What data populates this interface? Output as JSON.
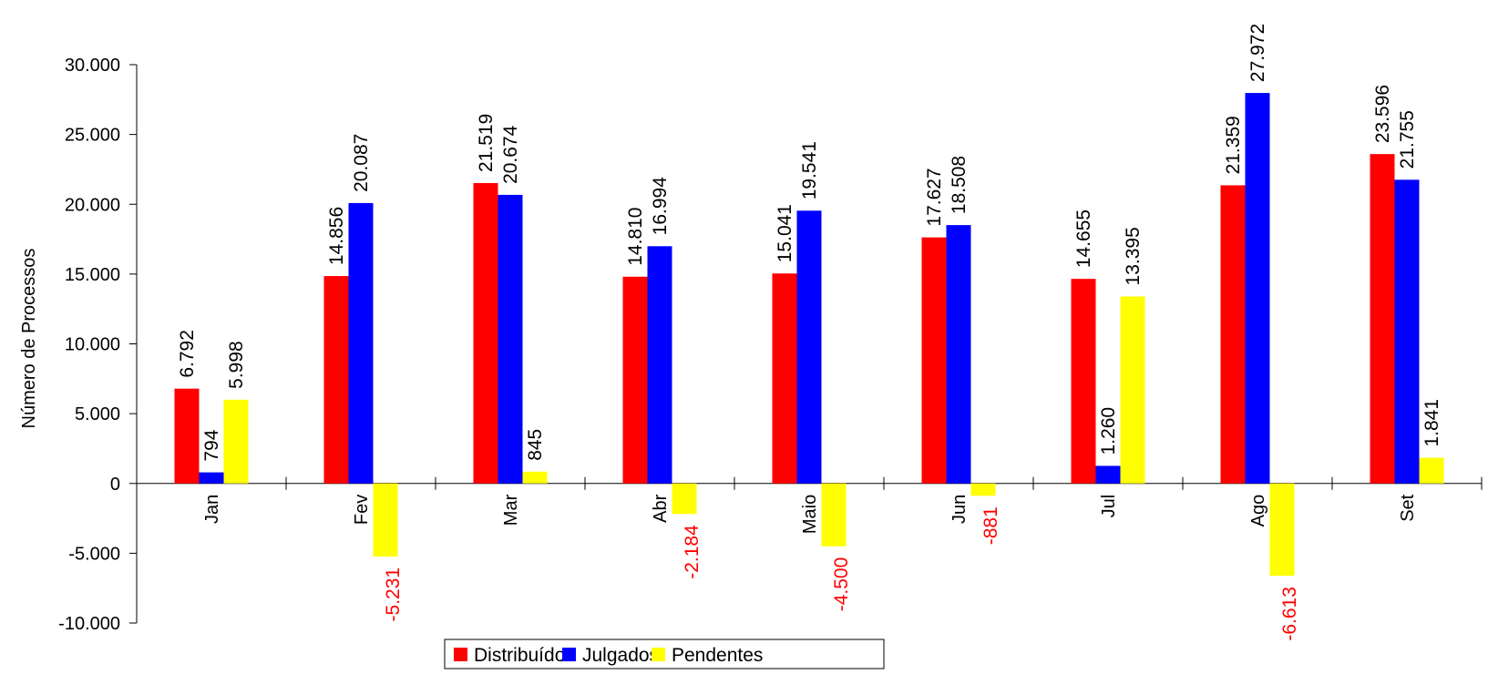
{
  "chart_data": {
    "type": "bar",
    "title": "",
    "xlabel": "",
    "ylabel": "Número de Processos",
    "ylim": [
      -10000,
      30000
    ],
    "yticks": [
      -10000,
      -5000,
      0,
      5000,
      10000,
      15000,
      20000,
      25000,
      30000
    ],
    "ytick_labels": [
      "-10.000",
      "-5.000",
      "0",
      "5.000",
      "10.000",
      "15.000",
      "20.000",
      "25.000",
      "30.000"
    ],
    "categories": [
      "Jan",
      "Fev",
      "Mar",
      "Abr",
      "Maio",
      "Jun",
      "Jul",
      "Ago",
      "Set"
    ],
    "series": [
      {
        "name": "Distribuídos",
        "color": "#ff0000",
        "values": [
          6792,
          14856,
          21519,
          14810,
          15041,
          17627,
          14655,
          21359,
          23596
        ],
        "labels": [
          "6.792",
          "14.856",
          "21.519",
          "14.810",
          "15.041",
          "17.627",
          "14.655",
          "21.359",
          "23.596"
        ]
      },
      {
        "name": "Julgados",
        "color": "#0000ff",
        "values": [
          794,
          20087,
          20674,
          16994,
          19541,
          18508,
          1260,
          27972,
          21755
        ],
        "labels": [
          "794",
          "20.087",
          "20.674",
          "16.994",
          "19.541",
          "18.508",
          "1.260",
          "27.972",
          "21.755"
        ]
      },
      {
        "name": "Pendentes",
        "color": "#ffff00",
        "values": [
          5998,
          -5231,
          845,
          -2184,
          -4500,
          -881,
          13395,
          -6613,
          1841
        ],
        "labels": [
          "5.998",
          "-5.231",
          "845",
          "-2.184",
          "-4.500",
          "-881",
          "13.395",
          "-6.613",
          "1.841"
        ]
      }
    ],
    "negative_label_color": "#ff0000",
    "legend": {
      "position": "bottom",
      "frame": true
    },
    "grid": false
  }
}
